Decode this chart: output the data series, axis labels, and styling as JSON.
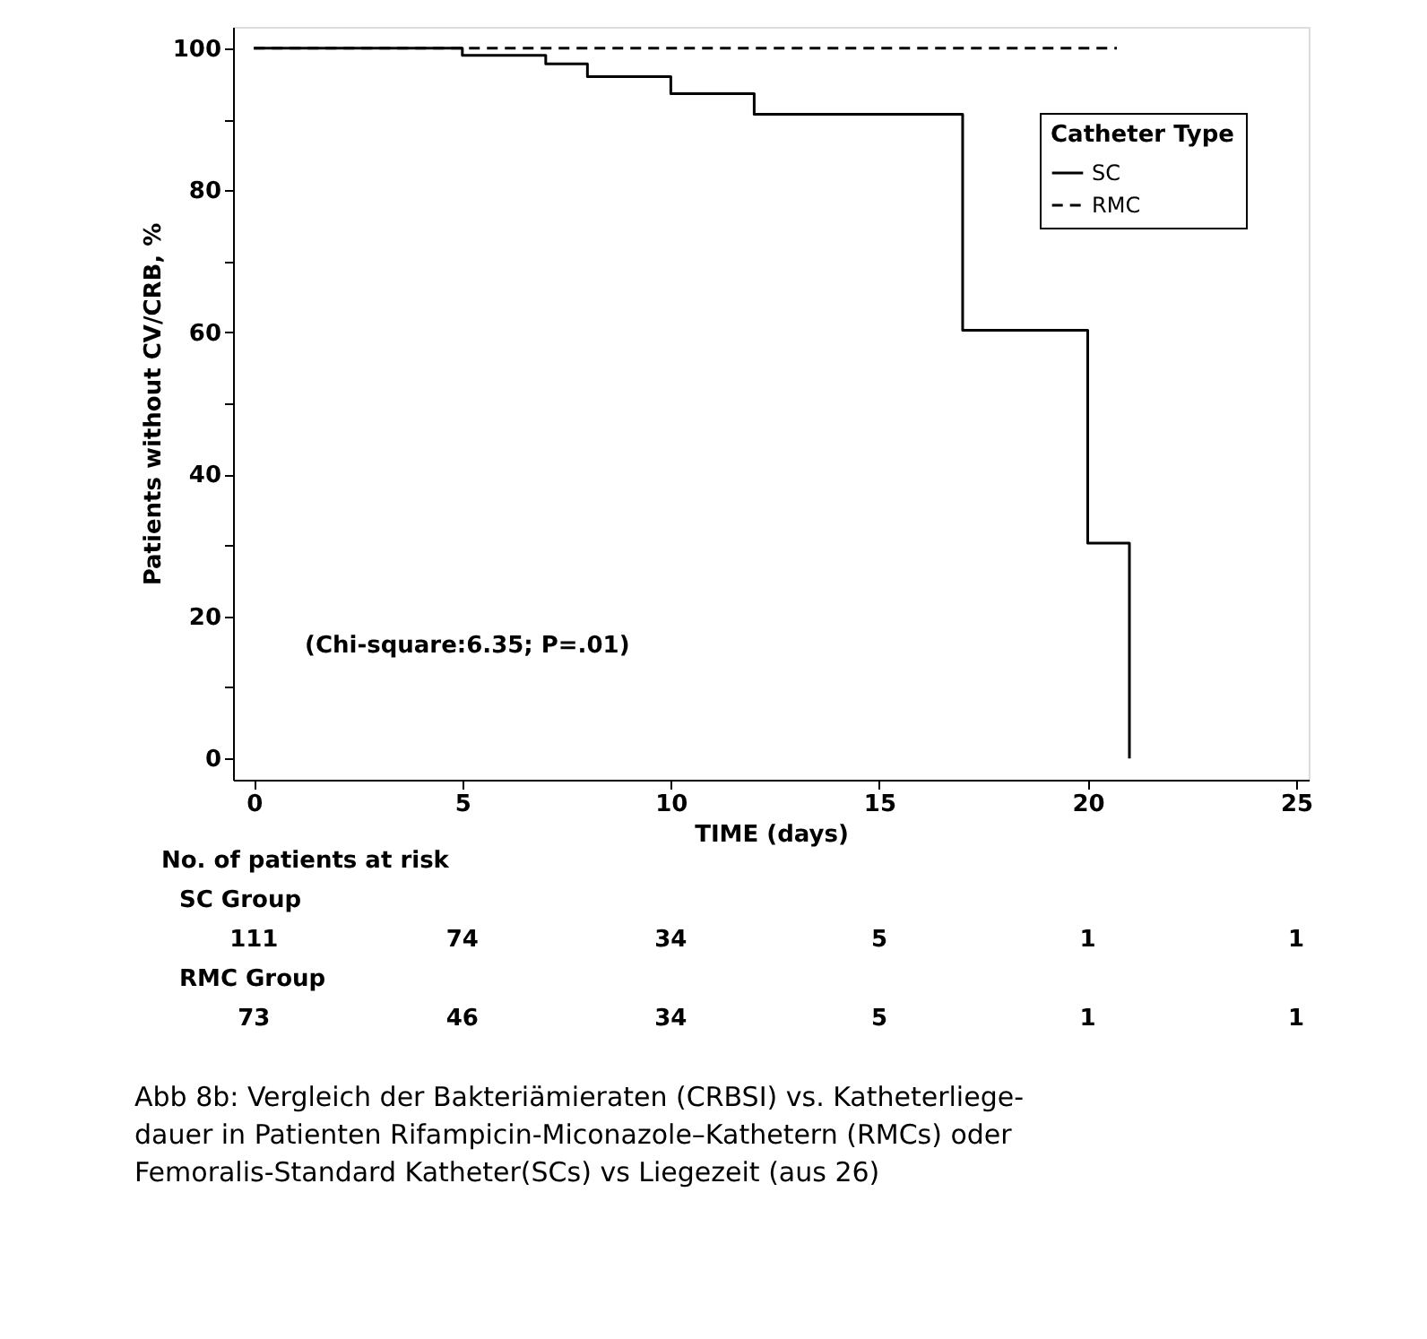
{
  "chart_data": {
    "type": "step",
    "xlabel": "TIME (days)",
    "ylabel": "Patients without CV/CRB, %",
    "legend_title": "Catheter Type",
    "legend": "top right",
    "grid": false,
    "marker": "none",
    "xlim": [
      -0.5,
      25.3
    ],
    "ylim": [
      -3,
      103
    ],
    "xticks": [
      0,
      5,
      10,
      15,
      20,
      25
    ],
    "yticks": [
      0,
      {
        "value": 10,
        "label": null
      },
      20,
      {
        "value": 30,
        "label": null
      },
      40,
      {
        "value": 50,
        "label": null
      },
      60,
      {
        "value": 70,
        "label": null
      },
      80,
      {
        "value": 90,
        "label": null
      },
      100
    ],
    "series": [
      {
        "name": "SC",
        "color": "#000000",
        "line_style": "solid",
        "x": [
          0,
          5,
          7,
          8,
          10,
          12,
          17,
          20,
          21
        ],
        "values": [
          100,
          99,
          97.8,
          96,
          93.6,
          90.7,
          60.3,
          30.3,
          0
        ]
      },
      {
        "name": "RMC",
        "color": "#000000",
        "line_style": "dashed",
        "x": [
          0,
          20.7
        ],
        "values": [
          100,
          100
        ]
      }
    ],
    "annotations": [
      "(Chi-square:6.35; P=.01)",
      "No. of patients at risk",
      "SC Group",
      "111",
      "74",
      "34",
      "5",
      "1",
      "1",
      "RMC Group",
      "73",
      "46",
      "34",
      "5",
      "1",
      "1",
      "Abb 8b: Vergleich der Bakteriämieraten (CRBSI) vs. Katheterliege-\ndauer in Patienten Rifampicin-Miconazole–Kathetern (RMCs) oder\nFemoralis-Standard Katheter(SCs) vs Liegezeit (aus 26)"
    ]
  }
}
